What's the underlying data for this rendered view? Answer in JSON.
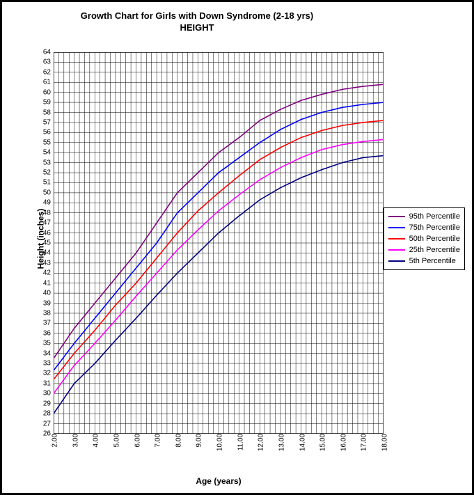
{
  "chart": {
    "type": "line",
    "title_line1": "Growth Chart for Girls with Down Syndrome (2-18 yrs)",
    "title_line2": "HEIGHT",
    "title_fontsize": 13,
    "xlabel": "Age (years)",
    "ylabel": "Height (inches)",
    "label_fontsize": 12,
    "background_color": "#ffffff",
    "border_color": "#000000",
    "grid_color": "#000000",
    "grid_vertical_minor_per_major": 4,
    "xlim": [
      2,
      18
    ],
    "ylim": [
      26,
      64
    ],
    "xtick_step": 1,
    "ytick_step": 1,
    "xtick_format": "fixed2",
    "ytick_format": "int",
    "line_width": 1.6,
    "x": [
      2,
      3,
      4,
      5,
      6,
      7,
      8,
      9,
      10,
      11,
      12,
      13,
      14,
      15,
      16,
      17,
      18
    ],
    "series": [
      {
        "name": "95th Percentile",
        "color": "#800080",
        "y": [
          33.5,
          36.5,
          39.0,
          41.5,
          44.0,
          47.0,
          50.0,
          52.0,
          54.0,
          55.5,
          57.2,
          58.3,
          59.2,
          59.8,
          60.3,
          60.6,
          60.8
        ]
      },
      {
        "name": "75th Percentile",
        "color": "#0000ff",
        "y": [
          32.3,
          35.0,
          37.5,
          40.0,
          42.5,
          45.0,
          48.0,
          50.0,
          52.0,
          53.5,
          55.0,
          56.3,
          57.3,
          58.0,
          58.5,
          58.8,
          59.0
        ]
      },
      {
        "name": "50th Percentile",
        "color": "#ff0000",
        "y": [
          31.4,
          34.0,
          36.3,
          38.8,
          41.0,
          43.5,
          46.0,
          48.2,
          50.0,
          51.7,
          53.3,
          54.5,
          55.5,
          56.2,
          56.7,
          57.0,
          57.2
        ]
      },
      {
        "name": "25th Percentile",
        "color": "#ff00ff",
        "y": [
          30.0,
          32.8,
          35.0,
          37.3,
          39.7,
          42.0,
          44.3,
          46.3,
          48.2,
          49.8,
          51.3,
          52.5,
          53.5,
          54.3,
          54.8,
          55.1,
          55.3
        ]
      },
      {
        "name": "5th Percentile",
        "color": "#000080",
        "y": [
          28.0,
          31.0,
          33.0,
          35.3,
          37.5,
          39.8,
          42.0,
          44.0,
          46.0,
          47.7,
          49.3,
          50.5,
          51.5,
          52.3,
          53.0,
          53.5,
          53.7
        ]
      }
    ],
    "legend": {
      "position": "right-middle",
      "border_color": "#000000",
      "fontsize": 11,
      "swatch_width": 24,
      "swatch_thickness": 2
    }
  }
}
